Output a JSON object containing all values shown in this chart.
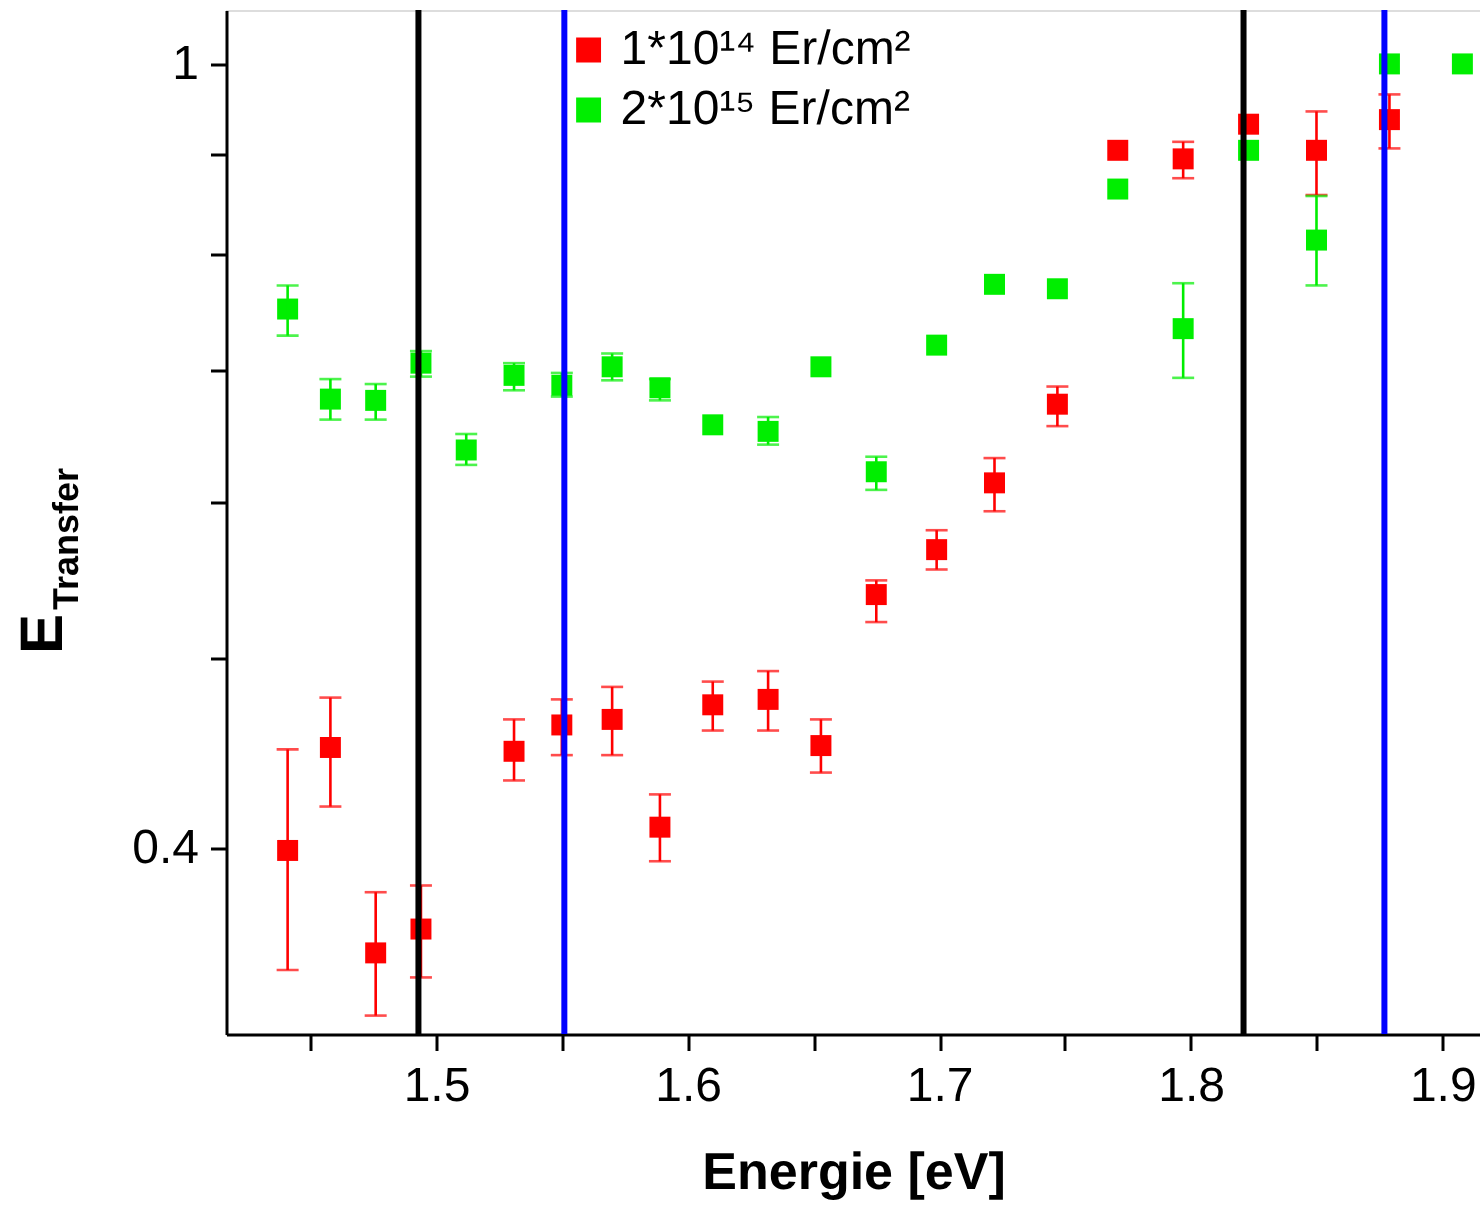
{
  "chart_data": {
    "type": "scatter",
    "xlabel": "Energie [eV]",
    "ylabel": "E$_{Transfer}$",
    "marker": "square",
    "log": "y",
    "grid": false,
    "legend": "top",
    "xlim": [
      1.4165,
      1.915
    ],
    "ylim": [
      0.322,
      1.065
    ],
    "xticks": [
      {
        "value": 1.45,
        "label": null
      },
      1.5,
      {
        "value": 1.55,
        "label": null
      },
      1.6,
      {
        "value": 1.65,
        "label": null
      },
      1.7,
      {
        "value": 1.75,
        "label": null
      },
      1.8,
      {
        "value": 1.85,
        "label": null
      },
      1.9
    ],
    "yticks": [
      0.4,
      {
        "value": 0.5,
        "label": null
      },
      {
        "value": 0.6,
        "label": null
      },
      {
        "value": 0.7,
        "label": null
      },
      {
        "value": 0.8,
        "label": null
      },
      {
        "value": 0.9,
        "label": null
      },
      1
    ],
    "ref_lines": [
      {
        "axis": "x",
        "value": 1.493,
        "color": "#000000"
      },
      {
        "axis": "x",
        "value": 1.551,
        "color": "#0000ff"
      },
      {
        "axis": "x",
        "value": 1.821,
        "color": "#000000"
      },
      {
        "axis": "x",
        "value": 1.877,
        "color": "#0000ff"
      }
    ],
    "series": [
      {
        "name": "1*10¹⁴ Er/cm²",
        "color": "#ff0000",
        "x": [
          1.441,
          1.458,
          1.476,
          1.494,
          1.512,
          1.531,
          1.55,
          1.57,
          1.589,
          1.61,
          1.632,
          1.653,
          1.675,
          1.699,
          1.722,
          1.747,
          1.771,
          1.797,
          1.823,
          1.85,
          1.879
        ],
        "values": [
          0.399,
          0.45,
          0.354,
          0.364,
          null,
          0.448,
          0.462,
          0.465,
          0.41,
          0.473,
          0.476,
          0.451,
          0.538,
          0.567,
          0.613,
          0.672,
          0.904,
          0.895,
          0.932,
          0.904,
          0.937
        ],
        "errors": [
          [
            0.347,
            0.449
          ],
          [
            0.42,
            0.477
          ],
          [
            0.329,
            0.38
          ],
          [
            0.344,
            0.383
          ],
          null,
          [
            0.433,
            0.465
          ],
          [
            0.446,
            0.476
          ],
          [
            0.446,
            0.483
          ],
          [
            0.394,
            0.426
          ],
          [
            0.459,
            0.486
          ],
          [
            0.459,
            0.492
          ],
          [
            0.437,
            0.465
          ],
          [
            0.521,
            0.547
          ],
          [
            0.554,
            0.58
          ],
          [
            0.593,
            0.631
          ],
          [
            0.655,
            0.686
          ],
          null,
          [
            0.875,
            0.913
          ],
          null,
          [
            0.858,
            0.946
          ],
          [
            0.906,
            0.965
          ]
        ]
      },
      {
        "name": "2*10¹⁵ Er/cm²",
        "color": "#00ee00",
        "x": [
          1.441,
          1.458,
          1.476,
          1.494,
          1.512,
          1.531,
          1.55,
          1.57,
          1.589,
          1.61,
          1.632,
          1.653,
          1.675,
          1.699,
          1.722,
          1.747,
          1.771,
          1.797,
          1.823,
          1.85,
          1.879,
          1.908
        ],
        "values": [
          0.751,
          0.676,
          0.675,
          0.705,
          0.637,
          0.695,
          0.687,
          0.702,
          0.685,
          0.656,
          0.651,
          0.702,
          0.621,
          0.72,
          0.773,
          0.769,
          0.864,
          0.734,
          0.904,
          0.814,
          1.0,
          1.0
        ],
        "errors": [
          [
            0.728,
            0.772
          ],
          [
            0.66,
            0.692
          ],
          [
            0.66,
            0.688
          ],
          [
            0.694,
            0.715
          ],
          [
            0.626,
            0.649
          ],
          [
            0.683,
            0.705
          ],
          [
            0.678,
            0.697
          ],
          [
            0.691,
            0.713
          ],
          [
            0.675,
            0.692
          ],
          null,
          [
            0.641,
            0.662
          ],
          null,
          [
            0.608,
            0.632
          ],
          null,
          null,
          null,
          null,
          [
            0.693,
            0.774
          ],
          null,
          [
            0.772,
            0.857
          ],
          null,
          null
        ]
      }
    ]
  }
}
